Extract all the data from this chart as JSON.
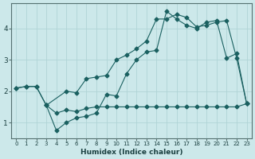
{
  "xlabel": "Humidex (Indice chaleur)",
  "bg_color": "#cce8ea",
  "grid_color": "#b0d4d6",
  "line_color": "#1a6060",
  "xlim": [
    -0.5,
    23.5
  ],
  "ylim": [
    0.5,
    4.8
  ],
  "line1_x": [
    0,
    1,
    2,
    3,
    4,
    5,
    6,
    7,
    8,
    9,
    10,
    11,
    12,
    13,
    14,
    15,
    16,
    17,
    18,
    19,
    20,
    21,
    22,
    23
  ],
  "line1_y": [
    2.1,
    2.15,
    2.15,
    1.55,
    0.75,
    1.0,
    1.15,
    1.2,
    1.3,
    1.9,
    1.85,
    2.55,
    3.0,
    3.25,
    3.3,
    4.55,
    4.3,
    4.1,
    4.0,
    4.2,
    4.25,
    3.05,
    3.2,
    1.6
  ],
  "line2_x": [
    0,
    1,
    2,
    3,
    5,
    6,
    7,
    8,
    9,
    10,
    11,
    12,
    13,
    14,
    15,
    16,
    17,
    18,
    19,
    20,
    21,
    22,
    23
  ],
  "line2_y": [
    2.1,
    2.15,
    2.15,
    1.55,
    2.0,
    1.95,
    2.4,
    2.45,
    2.5,
    3.0,
    3.15,
    3.35,
    3.6,
    4.3,
    4.3,
    4.45,
    4.35,
    4.05,
    4.1,
    4.2,
    4.25,
    3.05,
    1.6
  ],
  "line3_x": [
    3,
    4,
    5,
    6,
    7,
    8,
    9,
    10,
    11,
    12,
    13,
    14,
    15,
    16,
    17,
    18,
    19,
    20,
    21,
    22,
    23
  ],
  "line3_y": [
    1.55,
    1.3,
    1.4,
    1.35,
    1.45,
    1.5,
    1.5,
    1.5,
    1.5,
    1.5,
    1.5,
    1.5,
    1.5,
    1.5,
    1.5,
    1.5,
    1.5,
    1.5,
    1.5,
    1.5,
    1.6
  ],
  "xticks": [
    0,
    1,
    2,
    3,
    4,
    5,
    6,
    7,
    8,
    9,
    10,
    11,
    12,
    13,
    14,
    15,
    16,
    17,
    18,
    19,
    20,
    21,
    22,
    23
  ],
  "yticks": [
    1,
    2,
    3,
    4
  ],
  "markersize": 2.5
}
